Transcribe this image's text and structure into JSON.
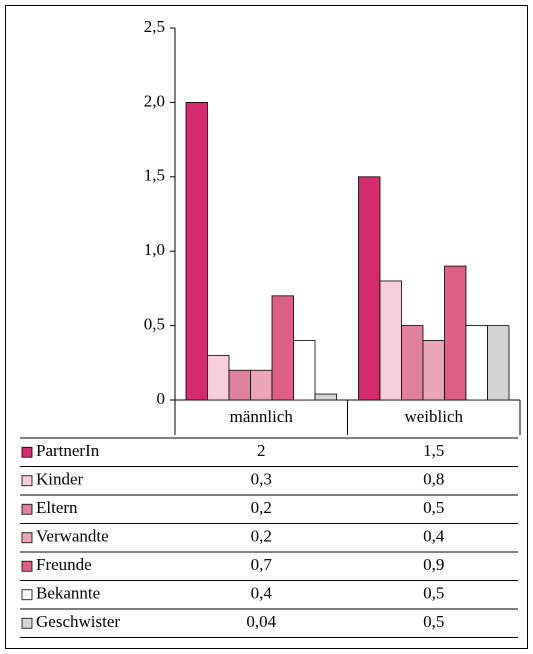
{
  "chart_data": {
    "type": "bar",
    "categories": [
      "männlich",
      "weiblich"
    ],
    "series": [
      {
        "name": "PartnerIn",
        "color": "#d42a6e",
        "values": [
          2,
          1.5
        ],
        "value_labels": [
          "2",
          "1,5"
        ]
      },
      {
        "name": "Kinder",
        "color": "#f5cfdb",
        "values": [
          0.3,
          0.8
        ],
        "value_labels": [
          "0,3",
          "0,8"
        ]
      },
      {
        "name": "Eltern",
        "color": "#e0809f",
        "values": [
          0.2,
          0.5
        ],
        "value_labels": [
          "0,2",
          "0,5"
        ]
      },
      {
        "name": "Verwandte",
        "color": "#e9a5b9",
        "values": [
          0.2,
          0.4
        ],
        "value_labels": [
          "0,2",
          "0,4"
        ]
      },
      {
        "name": "Freunde",
        "color": "#dd5e86",
        "values": [
          0.7,
          0.9
        ],
        "value_labels": [
          "0,7",
          "0,9"
        ]
      },
      {
        "name": "Bekannte",
        "color": "#ffffff",
        "values": [
          0.4,
          0.5
        ],
        "value_labels": [
          "0,4",
          "0,5"
        ]
      },
      {
        "name": "Geschwister",
        "color": "#d4d4d4",
        "values": [
          0.04,
          0.5
        ],
        "value_labels": [
          "0,04",
          "0,5"
        ]
      }
    ],
    "ylim": [
      0,
      2.5
    ],
    "yticks": [
      0,
      {
        "value": 0.5,
        "label": "0,5"
      },
      {
        "value": 1,
        "label": "1,0"
      },
      {
        "value": 1.5,
        "label": "1,5"
      },
      {
        "value": 2,
        "label": "2,0"
      },
      {
        "value": 2.5,
        "label": "2,5"
      }
    ],
    "grid": false
  }
}
